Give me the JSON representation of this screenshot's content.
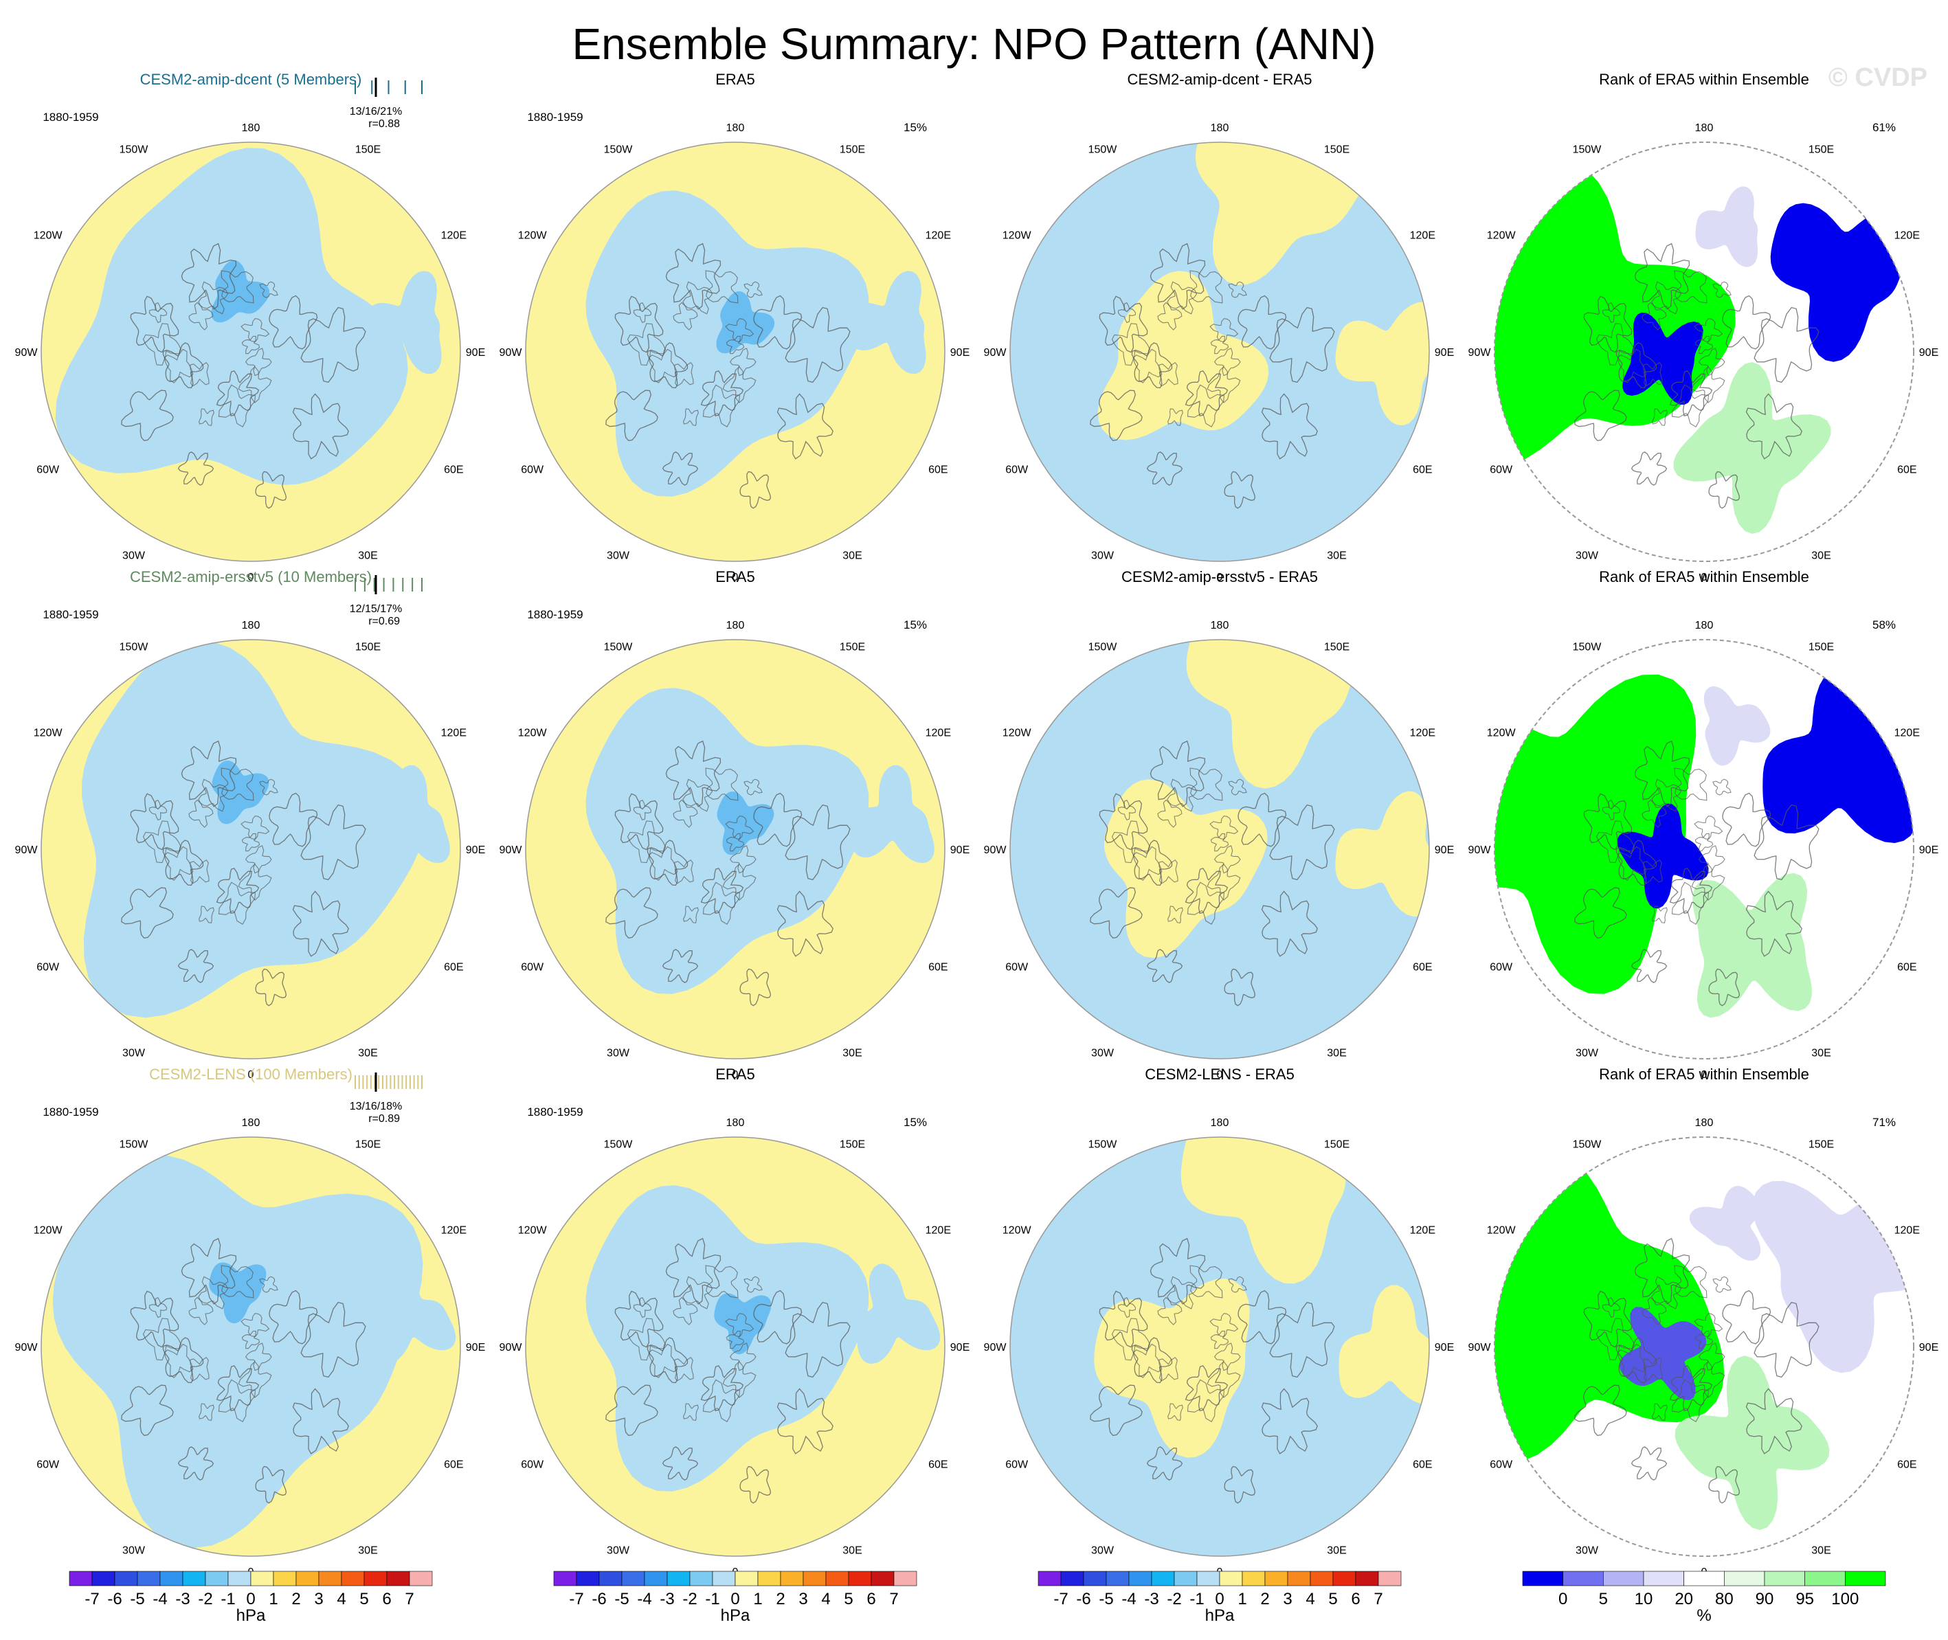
{
  "title": "Ensemble Summary: NPO Pattern (ANN)",
  "watermark": "© CVDP",
  "lon_labels": [
    "180",
    "150E",
    "120E",
    "90E",
    "60E",
    "30E",
    "0",
    "30W",
    "60W",
    "90W",
    "120W",
    "150W"
  ],
  "colors": {
    "positive_fill": "#fbf49c",
    "negative_fill": "#b3ddf2",
    "strong_negative_fill": "#69bdf0",
    "rank_high": "#00ff00",
    "rank_mid_high": "#bbf5bb",
    "rank_low": "#0000ee",
    "rank_mid_low": "#dcdcf7",
    "map_edge": "#999999",
    "coast": "#555555"
  },
  "rows": [
    {
      "model": {
        "title": "CESM2-amip-dcent (5 Members)",
        "title_color": "#1a6e8f",
        "period": "1880-1959",
        "stats": "13/16/21%",
        "corr": "r=0.88"
      },
      "obs": {
        "title": "ERA5",
        "period": "1880-1959",
        "pct": "15%"
      },
      "diff": {
        "title": "CESM2-amip-dcent - ERA5"
      },
      "rank": {
        "title": "Rank of ERA5 within Ensemble",
        "pct": "61%"
      }
    },
    {
      "model": {
        "title": "CESM2-amip-ersstv5 (10 Members)",
        "title_color": "#5f8a5f",
        "period": "1880-1959",
        "stats": "12/15/17%",
        "corr": "r=0.69"
      },
      "obs": {
        "title": "ERA5",
        "period": "1880-1959",
        "pct": "15%"
      },
      "diff": {
        "title": "CESM2-amip-ersstv5 - ERA5"
      },
      "rank": {
        "title": "Rank of ERA5 within Ensemble",
        "pct": "58%"
      }
    },
    {
      "model": {
        "title": "CESM2-LENS (100 Members)",
        "title_color": "#d8c77e",
        "period": "1880-1959",
        "stats": "13/16/18%",
        "corr": "r=0.89"
      },
      "obs": {
        "title": "ERA5",
        "period": "1880-1959",
        "pct": "15%"
      },
      "diff": {
        "title": "CESM2-LENS - ERA5"
      },
      "rank": {
        "title": "Rank of ERA5 within Ensemble",
        "pct": "71%"
      }
    }
  ],
  "colorbars": [
    {
      "unit": "hPa",
      "labels": [
        "-7",
        "-6",
        "-5",
        "-4",
        "-3",
        "-2",
        "-1",
        "0",
        "1",
        "2",
        "3",
        "4",
        "5",
        "6",
        "7"
      ],
      "colors": [
        "#7b1fe6",
        "#2020e0",
        "#2f4fe0",
        "#3a6ee8",
        "#2f94ee",
        "#12b4f2",
        "#7ccaf2",
        "#b7def2",
        "#fbf49c",
        "#fcd44a",
        "#fbb02a",
        "#f7881e",
        "#f45c16",
        "#e8280e",
        "#c81414",
        "#f6aeae"
      ]
    },
    {
      "unit": "%",
      "labels": [
        "0",
        "5",
        "10",
        "20",
        "80",
        "90",
        "95",
        "100"
      ],
      "colors": [
        "#0000ee",
        "#7070f0",
        "#b4b4f4",
        "#e0e0f8",
        "#ffffff",
        "#e4f8e4",
        "#baf5ba",
        "#8cf58c",
        "#00ff00"
      ]
    }
  ],
  "chart_data": [
    {
      "type": "map",
      "panel": "model",
      "row": 1,
      "title": "CESM2-amip-dcent (5 Members)",
      "period": "1880-1959",
      "pct_variance": [
        13,
        16,
        21
      ],
      "pattern_corr": 0.88,
      "unit": "hPa",
      "contour_levels": [
        -7,
        -6,
        -5,
        -4,
        -3,
        -2,
        -1,
        0,
        1,
        2,
        3,
        4,
        5,
        6,
        7
      ]
    },
    {
      "type": "map",
      "panel": "obs",
      "row": 1,
      "title": "ERA5",
      "period": "1880-1959",
      "pct_variance": 15,
      "unit": "hPa"
    },
    {
      "type": "map",
      "panel": "difference",
      "row": 1,
      "title": "CESM2-amip-dcent - ERA5",
      "unit": "hPa"
    },
    {
      "type": "map",
      "panel": "rank",
      "row": 1,
      "title": "Rank of ERA5 within Ensemble",
      "area_pct": 61,
      "unit": "%",
      "rank_levels": [
        0,
        5,
        10,
        20,
        80,
        90,
        95,
        100
      ]
    },
    {
      "type": "map",
      "panel": "model",
      "row": 2,
      "title": "CESM2-amip-ersstv5 (10 Members)",
      "period": "1880-1959",
      "pct_variance": [
        12,
        15,
        17
      ],
      "pattern_corr": 0.69,
      "unit": "hPa"
    },
    {
      "type": "map",
      "panel": "obs",
      "row": 2,
      "title": "ERA5",
      "period": "1880-1959",
      "pct_variance": 15,
      "unit": "hPa"
    },
    {
      "type": "map",
      "panel": "difference",
      "row": 2,
      "title": "CESM2-amip-ersstv5 - ERA5",
      "unit": "hPa"
    },
    {
      "type": "map",
      "panel": "rank",
      "row": 2,
      "title": "Rank of ERA5 within Ensemble",
      "area_pct": 58,
      "unit": "%"
    },
    {
      "type": "map",
      "panel": "model",
      "row": 3,
      "title": "CESM2-LENS (100 Members)",
      "period": "1880-1959",
      "pct_variance": [
        13,
        16,
        18
      ],
      "pattern_corr": 0.89,
      "unit": "hPa"
    },
    {
      "type": "map",
      "panel": "obs",
      "row": 3,
      "title": "ERA5",
      "period": "1880-1959",
      "pct_variance": 15,
      "unit": "hPa"
    },
    {
      "type": "map",
      "panel": "difference",
      "row": 3,
      "title": "CESM2-LENS - ERA5",
      "unit": "hPa"
    },
    {
      "type": "map",
      "panel": "rank",
      "row": 3,
      "title": "Rank of ERA5 within Ensemble",
      "area_pct": 71,
      "unit": "%"
    }
  ]
}
